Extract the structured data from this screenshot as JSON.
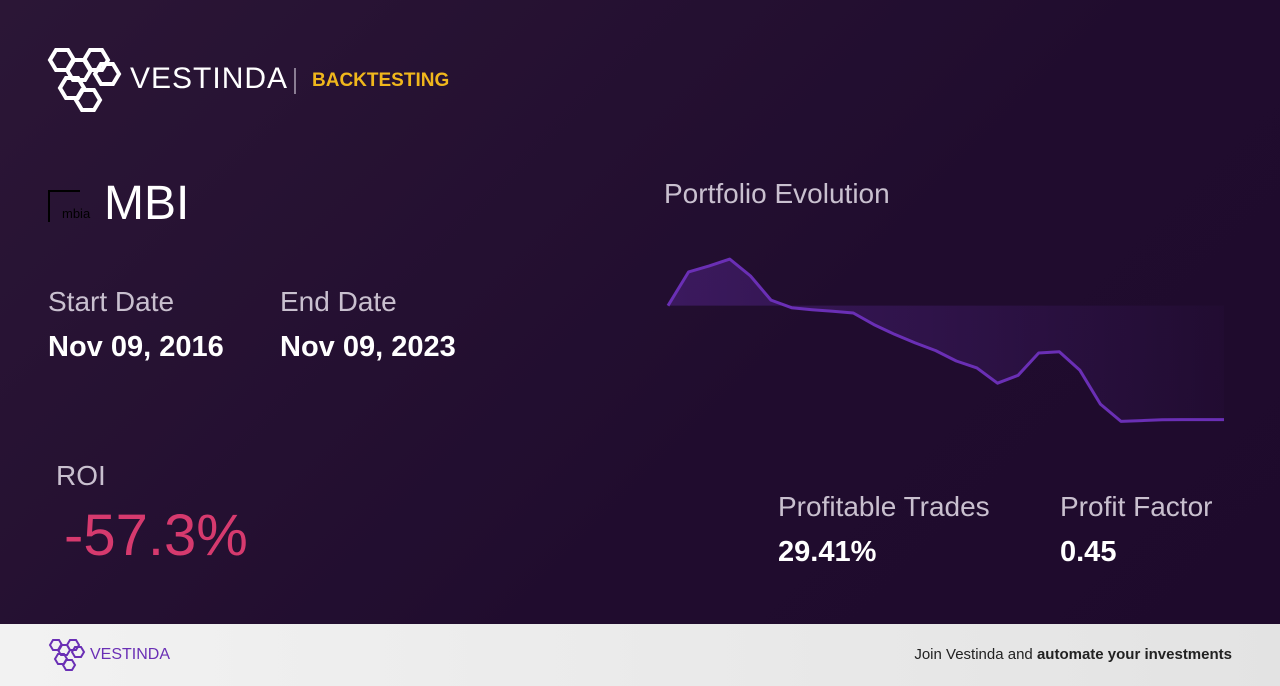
{
  "header": {
    "brand": "VESTINDA",
    "section": "BACKTESTING"
  },
  "asset": {
    "logo_text": "mbia",
    "ticker": "MBI"
  },
  "dates": {
    "start_label": "Start Date",
    "start": "Nov 09, 2016",
    "end_label": "End Date",
    "end": "Nov 09, 2023"
  },
  "roi": {
    "label": "ROI",
    "value": "-57.3%"
  },
  "metrics": [
    {
      "label": "Profitable Trades",
      "value": "29.41%"
    },
    {
      "label": "Profit Factor",
      "value": "0.45"
    }
  ],
  "footer": {
    "brand": "VESTINDA",
    "text": "Join Vestinda and ",
    "bold": "automate your investments"
  },
  "chart_data": {
    "type": "line",
    "title": "Portfolio Evolution",
    "values": [
      0,
      17,
      20,
      23.4,
      15,
      2.8,
      -1,
      -2,
      -2.8,
      -3.7,
      -9.5,
      -14.4,
      -18.7,
      -22.6,
      -27.8,
      -31.3,
      -39,
      -35,
      -23.8,
      -23.2,
      -32.5,
      -49.5,
      -58.2,
      -57.8,
      -57.4,
      -57.3,
      -57.3,
      -57.3
    ],
    "color": "#6a2fb5",
    "ylim": [
      -60,
      28
    ]
  }
}
